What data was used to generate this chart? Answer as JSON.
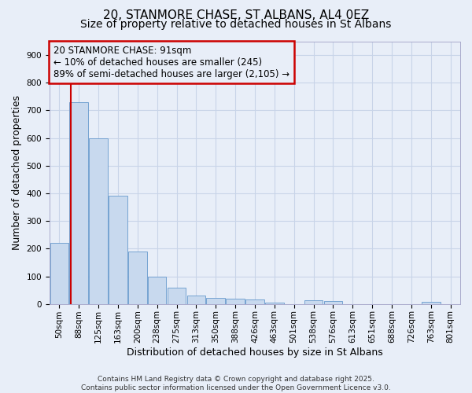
{
  "title_line1": "20, STANMORE CHASE, ST ALBANS, AL4 0EZ",
  "title_line2": "Size of property relative to detached houses in St Albans",
  "xlabel": "Distribution of detached houses by size in St Albans",
  "ylabel": "Number of detached properties",
  "categories": [
    "50sqm",
    "88sqm",
    "125sqm",
    "163sqm",
    "200sqm",
    "238sqm",
    "275sqm",
    "313sqm",
    "350sqm",
    "388sqm",
    "426sqm",
    "463sqm",
    "501sqm",
    "538sqm",
    "576sqm",
    "613sqm",
    "651sqm",
    "688sqm",
    "726sqm",
    "763sqm",
    "801sqm"
  ],
  "values": [
    220,
    730,
    600,
    390,
    190,
    100,
    58,
    30,
    22,
    20,
    17,
    5,
    0,
    12,
    10,
    0,
    0,
    0,
    0,
    7,
    0
  ],
  "bar_color": "#c8d9ee",
  "bar_edge_color": "#6699cc",
  "grid_color": "#c8d4e8",
  "background_color": "#e8eef8",
  "vline_color": "#cc0000",
  "vline_x": 0.575,
  "annotation_text": "20 STANMORE CHASE: 91sqm\n← 10% of detached houses are smaller (245)\n89% of semi-detached houses are larger (2,105) →",
  "annotation_box_color": "#cc0000",
  "ylim": [
    0,
    950
  ],
  "yticks": [
    0,
    100,
    200,
    300,
    400,
    500,
    600,
    700,
    800,
    900
  ],
  "footer_line1": "Contains HM Land Registry data © Crown copyright and database right 2025.",
  "footer_line2": "Contains public sector information licensed under the Open Government Licence v3.0.",
  "title_fontsize": 11,
  "subtitle_fontsize": 10,
  "tick_fontsize": 7.5,
  "label_fontsize": 9,
  "annotation_fontsize": 8.5
}
